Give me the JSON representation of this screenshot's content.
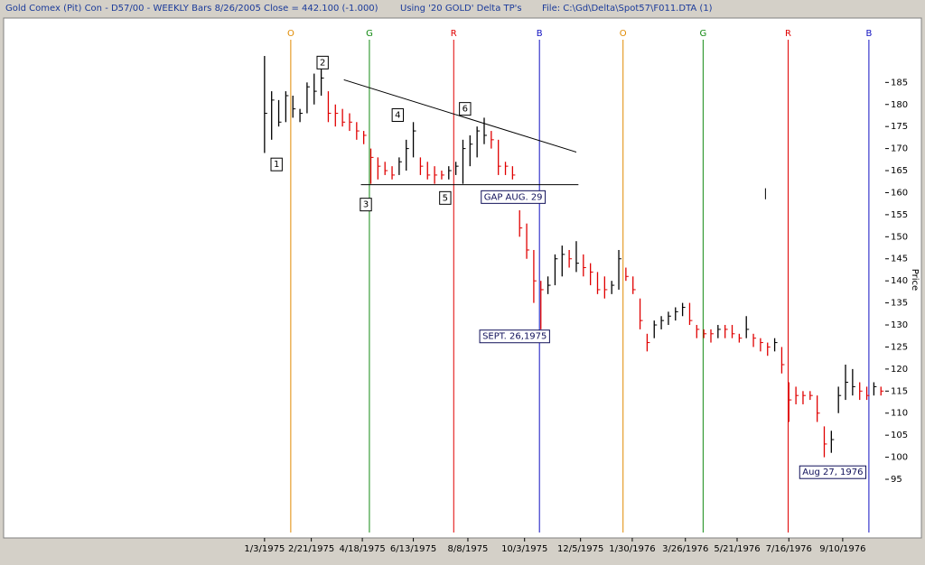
{
  "chart_data": {
    "type": "ohlc",
    "header": [
      "Gold Comex (Pit) Con - D57/00  - WEEKLY Bars  8/26/2005 Close = 442.100 (-1.000)",
      "Using '20 GOLD' Delta TP's",
      "File: C:\\Gd\\Delta\\Spot57\\F011.DTA (1)"
    ],
    "y_label": "Price",
    "x": [
      0,
      1,
      2,
      3,
      4,
      5,
      6,
      7,
      8,
      9,
      10,
      11,
      12,
      13,
      14,
      15,
      16,
      17,
      18,
      19,
      20,
      21,
      22,
      23,
      24,
      25,
      26,
      27,
      28,
      29,
      30,
      31,
      32,
      33,
      34,
      35,
      36,
      37,
      38,
      39,
      40,
      41,
      42,
      43,
      44,
      45,
      46,
      47,
      48,
      49,
      50,
      51,
      52,
      53,
      54,
      55,
      56,
      57,
      58,
      59,
      60,
      61,
      62,
      63,
      64,
      65,
      66,
      67,
      68,
      69,
      70,
      71,
      72,
      73,
      74,
      75,
      76,
      77,
      78,
      79,
      80,
      81,
      82,
      83,
      84,
      85,
      86,
      87
    ],
    "high": [
      191,
      183,
      181,
      183,
      182,
      179,
      185,
      187,
      188,
      183,
      180,
      179,
      178,
      176,
      174,
      170,
      168,
      167,
      166,
      168,
      172,
      176,
      168,
      167,
      166,
      165,
      166,
      167,
      172,
      173,
      175,
      177,
      174,
      172,
      167,
      166,
      156,
      153,
      147,
      140,
      141,
      146,
      148,
      147,
      149,
      146,
      144,
      142,
      141,
      140,
      147,
      143,
      141,
      136,
      128,
      131,
      132,
      133,
      134,
      135,
      135,
      130,
      129,
      129,
      130,
      130,
      130,
      128,
      132,
      128,
      127,
      126,
      127,
      125,
      117,
      116,
      115,
      115,
      114,
      107,
      106,
      116,
      121,
      120,
      117,
      116,
      117,
      116
    ],
    "low": [
      169,
      172,
      175,
      176,
      177,
      176,
      178,
      180,
      182,
      176,
      175,
      175,
      174,
      172,
      171,
      162,
      163,
      164,
      163,
      164,
      165,
      168,
      164,
      163,
      162,
      163,
      163,
      164,
      162,
      166,
      168,
      171,
      170,
      164,
      164,
      163,
      150,
      145,
      135,
      129,
      137,
      139,
      141,
      143,
      142,
      141,
      139,
      137,
      136,
      137,
      138,
      140,
      137,
      129,
      124,
      127,
      129,
      130,
      131,
      132,
      130,
      127,
      127,
      126,
      127,
      127,
      127,
      126,
      127,
      125,
      124,
      123,
      124,
      119,
      108,
      112,
      112,
      113,
      108,
      100,
      101,
      110,
      113,
      114,
      113,
      113,
      114,
      114
    ],
    "close": [
      178,
      181,
      176,
      182,
      179,
      178,
      184,
      183,
      186,
      178,
      178,
      176,
      176,
      174,
      173,
      168,
      166,
      165,
      164,
      167,
      170,
      174,
      166,
      164,
      164,
      164,
      165,
      166,
      170,
      171,
      174,
      173,
      172,
      166,
      166,
      164,
      152,
      147,
      140,
      138,
      139,
      145,
      146,
      145,
      144,
      143,
      142,
      138,
      138,
      139,
      145,
      141,
      138,
      131,
      126,
      130,
      131,
      132,
      133,
      134,
      131,
      129,
      128,
      128,
      129,
      129,
      128,
      127,
      129,
      127,
      126,
      125,
      126,
      121,
      113,
      114,
      114,
      114,
      110,
      103,
      104,
      114,
      117,
      116,
      115,
      114,
      116,
      115
    ],
    "colors": [
      "#000000",
      "#000000",
      "#000000",
      "#000000",
      "#000000",
      "#000000",
      "#000000",
      "#000000",
      "#000000",
      "#e00000",
      "#e00000",
      "#e00000",
      "#e00000",
      "#e00000",
      "#e00000",
      "#e00000",
      "#e00000",
      "#e00000",
      "#e00000",
      "#000000",
      "#000000",
      "#000000",
      "#e00000",
      "#e00000",
      "#e00000",
      "#e00000",
      "#000000",
      "#000000",
      "#000000",
      "#000000",
      "#000000",
      "#000000",
      "#e00000",
      "#e00000",
      "#e00000",
      "#e00000",
      "#e00000",
      "#e00000",
      "#e00000",
      "#e00000",
      "#000000",
      "#000000",
      "#000000",
      "#e00000",
      "#000000",
      "#e00000",
      "#e00000",
      "#e00000",
      "#e00000",
      "#000000",
      "#000000",
      "#e00000",
      "#e00000",
      "#e00000",
      "#e00000",
      "#000000",
      "#000000",
      "#000000",
      "#000000",
      "#000000",
      "#e00000",
      "#e00000",
      "#e00000",
      "#e00000",
      "#000000",
      "#e00000",
      "#e00000",
      "#e00000",
      "#000000",
      "#e00000",
      "#e00000",
      "#e00000",
      "#000000",
      "#e00000",
      "#e00000",
      "#e00000",
      "#e00000",
      "#e00000",
      "#e00000",
      "#e00000",
      "#000000",
      "#000000",
      "#000000",
      "#000000",
      "#e00000",
      "#e00000",
      "#000000",
      "#e00000"
    ],
    "xlim": [
      -36.7,
      88.5
    ],
    "xticks": [
      {
        "value": 0,
        "label": "1/3/1975"
      },
      {
        "value": 6.6,
        "label": "2/21/1975"
      },
      {
        "value": 13.8,
        "label": "4/18/1975"
      },
      {
        "value": 21,
        "label": "6/13/1975"
      },
      {
        "value": 28.7,
        "label": "8/8/1975"
      },
      {
        "value": 36.7,
        "label": "10/3/1975"
      },
      {
        "value": 44.6,
        "label": "12/5/1975"
      },
      {
        "value": 51.9,
        "label": "1/30/1976"
      },
      {
        "value": 59.4,
        "label": "3/26/1976"
      },
      {
        "value": 66.7,
        "label": "5/21/1976"
      },
      {
        "value": 74,
        "label": "7/16/1976"
      },
      {
        "value": 81.6,
        "label": "9/10/1976"
      }
    ],
    "ylim": [
      81.7,
      199.6
    ],
    "yticks": [
      95,
      100,
      105,
      110,
      115,
      120,
      125,
      130,
      135,
      140,
      145,
      150,
      155,
      160,
      165,
      170,
      175,
      180,
      185
    ],
    "cycles": [
      {
        "label": "O",
        "x": 3.7,
        "color": "#e08a00"
      },
      {
        "label": "G",
        "x": 14.8,
        "color": "#138a13"
      },
      {
        "label": "R",
        "x": 26.7,
        "color": "#e00000"
      },
      {
        "label": "B",
        "x": 38.8,
        "color": "#1010c0"
      },
      {
        "label": "O",
        "x": 50.6,
        "color": "#e08a00"
      },
      {
        "label": "G",
        "x": 61.9,
        "color": "#138a13"
      },
      {
        "label": "R",
        "x": 73.9,
        "color": "#e00000"
      },
      {
        "label": "B",
        "x": 85.3,
        "color": "#1010c0"
      }
    ],
    "annotations": [
      {
        "text": "1",
        "x": 1.7,
        "y": 166.4
      },
      {
        "text": "2",
        "x": 8.2,
        "y": 189.5
      },
      {
        "text": "3",
        "x": 14.3,
        "y": 157.3
      },
      {
        "text": "4",
        "x": 18.8,
        "y": 177.6
      },
      {
        "text": "5",
        "x": 25.5,
        "y": 158.8
      },
      {
        "text": "6",
        "x": 28.3,
        "y": 179
      },
      {
        "text": "GAP AUG. 29",
        "x": 35.1,
        "y": 159
      },
      {
        "text": "SEPT. 26,1975",
        "x": 35.3,
        "y": 127.4
      },
      {
        "text": "Aug 27, 1976",
        "x": 80.2,
        "y": 96.6
      }
    ],
    "lines": [
      {
        "x": [
          11.2,
          44
        ],
        "y": [
          185.6,
          169.2
        ]
      },
      {
        "x": [
          13.6,
          44.3
        ],
        "y": [
          161.8,
          161.8
        ]
      },
      {
        "x": [
          70.7,
          70.7
        ],
        "y": [
          161,
          158.5
        ]
      }
    ]
  }
}
